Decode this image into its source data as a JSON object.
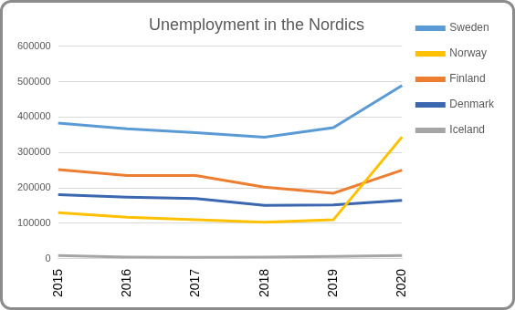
{
  "chart_data": {
    "type": "line",
    "title": "Unemployment in the Nordics",
    "categories": [
      "2015",
      "2016",
      "2017",
      "2018",
      "2019",
      "2020"
    ],
    "series": [
      {
        "name": "Sweden",
        "color": "#5b9bd5",
        "values": [
          383000,
          367000,
          356000,
          343000,
          370000,
          489000
        ]
      },
      {
        "name": "Norway",
        "color": "#ffc000",
        "values": [
          130000,
          117000,
          110000,
          103000,
          110000,
          344000
        ]
      },
      {
        "name": "Finland",
        "color": "#ed7d31",
        "values": [
          252000,
          235000,
          235000,
          202000,
          185000,
          250000
        ]
      },
      {
        "name": "Denmark",
        "color": "#3a67b0",
        "values": [
          181000,
          174000,
          170000,
          151000,
          152000,
          165000
        ]
      },
      {
        "name": "Iceland",
        "color": "#a5a5a5",
        "values": [
          9000,
          5000,
          4000,
          5000,
          7000,
          9000
        ]
      }
    ],
    "ylim": [
      0,
      600000
    ],
    "yticks": [
      0,
      100000,
      200000,
      300000,
      400000,
      500000,
      600000
    ],
    "grid": true,
    "legend": "right",
    "marker": "none"
  }
}
